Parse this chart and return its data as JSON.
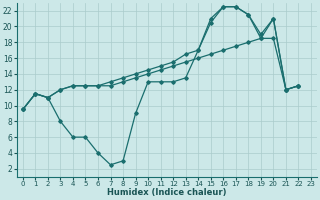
{
  "xlabel": "Humidex (Indice chaleur)",
  "background_color": "#cce8e8",
  "grid_color": "#aacccc",
  "line_color": "#1a6e6e",
  "xlim": [
    -0.5,
    23.5
  ],
  "ylim": [
    1,
    23
  ],
  "xticks": [
    0,
    1,
    2,
    3,
    4,
    5,
    6,
    7,
    8,
    9,
    10,
    11,
    12,
    13,
    14,
    15,
    16,
    17,
    18,
    19,
    20,
    21,
    22,
    23
  ],
  "yticks": [
    2,
    4,
    6,
    8,
    10,
    12,
    14,
    16,
    18,
    20,
    22
  ],
  "series": [
    {
      "x": [
        0,
        1,
        2,
        3,
        4,
        5,
        6,
        7,
        8,
        9,
        10,
        11,
        12,
        13,
        14,
        15,
        16,
        17,
        18,
        19,
        20,
        21,
        22
      ],
      "y": [
        9.5,
        11.5,
        11.0,
        8.0,
        6.0,
        6.0,
        4.0,
        2.5,
        3.0,
        9.0,
        13.0,
        13.0,
        13.0,
        13.5,
        17.0,
        21.0,
        22.5,
        22.5,
        21.5,
        18.5,
        21.0,
        12.0,
        12.5
      ]
    },
    {
      "x": [
        0,
        1,
        2,
        3,
        4,
        5,
        6,
        7,
        8,
        9,
        10,
        11,
        12,
        13,
        14,
        15,
        16,
        17,
        18,
        19,
        20,
        21,
        22
      ],
      "y": [
        9.5,
        11.5,
        11.0,
        12.0,
        12.5,
        12.5,
        12.5,
        12.5,
        13.0,
        13.5,
        14.0,
        14.5,
        15.0,
        15.5,
        16.0,
        16.5,
        17.0,
        17.5,
        18.0,
        18.5,
        18.5,
        12.0,
        12.5
      ]
    },
    {
      "x": [
        0,
        1,
        2,
        3,
        4,
        5,
        6,
        7,
        8,
        9,
        10,
        11,
        12,
        13,
        14,
        15,
        16,
        17,
        18,
        19,
        20,
        21,
        22
      ],
      "y": [
        9.5,
        11.5,
        11.0,
        12.0,
        12.5,
        12.5,
        12.5,
        13.0,
        13.5,
        14.0,
        14.5,
        15.0,
        15.5,
        16.5,
        17.0,
        20.5,
        22.5,
        22.5,
        21.5,
        19.0,
        21.0,
        12.0,
        12.5
      ]
    }
  ]
}
